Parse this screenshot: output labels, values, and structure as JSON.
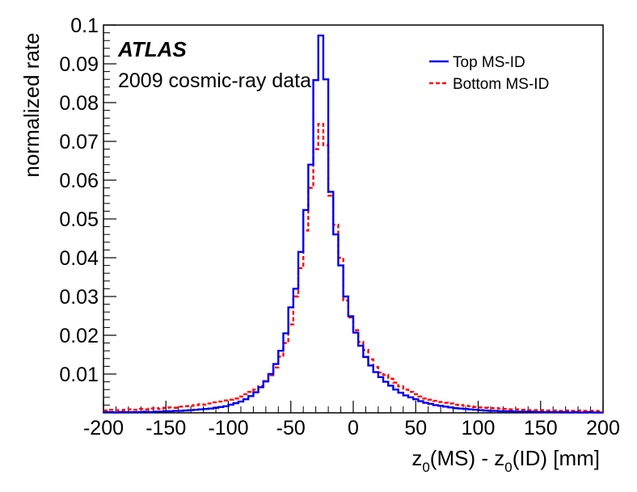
{
  "chart_data": {
    "type": "line",
    "title": "ATLAS",
    "subtitle": "2009 cosmic-ray data",
    "xlabel": {
      "p1": "z",
      "s1": "0",
      "p2": "(MS) - z",
      "s2": "0",
      "p3": "(ID) [mm]"
    },
    "ylabel": "normalized rate",
    "xlim": [
      -200,
      200
    ],
    "ylim": [
      0,
      0.1
    ],
    "xticks": [
      -200,
      -150,
      -100,
      -50,
      0,
      50,
      100,
      150,
      200
    ],
    "xtick_labels": [
      "-200",
      "-150",
      "-100",
      "-50",
      "0",
      "50",
      "100",
      "150",
      "200"
    ],
    "yticks": [
      0.01,
      0.02,
      0.03,
      0.04,
      0.05,
      0.06,
      0.07,
      0.08,
      0.09,
      0.1
    ],
    "ytick_labels": [
      "0.01",
      "0.02",
      "0.03",
      "0.04",
      "0.05",
      "0.06",
      "0.07",
      "0.08",
      "0.09",
      "0.1"
    ],
    "legend_position": "top-right",
    "bin_width": 4,
    "series": [
      {
        "name": "Top MS-ID",
        "color": "#0000ee",
        "style": "solid",
        "values": [
          0.0002,
          0.0002,
          0.0001,
          0.0002,
          0.0002,
          0.0002,
          0.0002,
          0.0002,
          0.0003,
          0.0002,
          0.0003,
          0.0003,
          0.0004,
          0.0004,
          0.0005,
          0.0005,
          0.0006,
          0.0007,
          0.0008,
          0.0009,
          0.001,
          0.0011,
          0.0013,
          0.0015,
          0.0017,
          0.0021,
          0.0025,
          0.0029,
          0.0035,
          0.0043,
          0.0053,
          0.0066,
          0.0081,
          0.01,
          0.0126,
          0.016,
          0.0205,
          0.0272,
          0.032,
          0.0415,
          0.0523,
          0.064,
          0.0858,
          0.0973,
          0.086,
          0.057,
          0.046,
          0.038,
          0.03,
          0.0249,
          0.0207,
          0.0173,
          0.0144,
          0.0122,
          0.0105,
          0.0092,
          0.008,
          0.007,
          0.006,
          0.0052,
          0.0045,
          0.004,
          0.0035,
          0.003,
          0.0026,
          0.0023,
          0.002,
          0.0018,
          0.0016,
          0.0014,
          0.0012,
          0.0011,
          0.001,
          0.0009,
          0.0008,
          0.0007,
          0.0006,
          0.0005,
          0.0005,
          0.0004,
          0.0004,
          0.0004,
          0.0003,
          0.0003,
          0.0003,
          0.0003,
          0.0002,
          0.0002,
          0.0002,
          0.0002,
          0.0002,
          0.0002,
          0.0002,
          0.0001,
          0.0002,
          0.0001,
          0.0001,
          0.0002,
          0.0001,
          0.0001
        ]
      },
      {
        "name": "Bottom MS-ID",
        "color": "#ff0000",
        "style": "dashed",
        "values": [
          0.0006,
          0.0008,
          0.0007,
          0.0007,
          0.0008,
          0.0009,
          0.0008,
          0.001,
          0.0009,
          0.0011,
          0.0012,
          0.001,
          0.0013,
          0.0014,
          0.0013,
          0.0016,
          0.0017,
          0.0018,
          0.002,
          0.0022,
          0.0021,
          0.0024,
          0.0027,
          0.0029,
          0.0032,
          0.0034,
          0.0037,
          0.0042,
          0.0048,
          0.0054,
          0.006,
          0.0069,
          0.0082,
          0.0097,
          0.0117,
          0.0145,
          0.018,
          0.0228,
          0.03,
          0.0373,
          0.047,
          0.058,
          0.068,
          0.0745,
          0.069,
          0.056,
          0.0485,
          0.04,
          0.029,
          0.0246,
          0.0213,
          0.0183,
          0.0162,
          0.0138,
          0.0118,
          0.0104,
          0.0098,
          0.0088,
          0.0078,
          0.0068,
          0.006,
          0.0054,
          0.0048,
          0.0042,
          0.0037,
          0.0034,
          0.0031,
          0.0028,
          0.0026,
          0.0024,
          0.0021,
          0.002,
          0.0018,
          0.0017,
          0.0015,
          0.0014,
          0.0013,
          0.0012,
          0.0012,
          0.0011,
          0.001,
          0.0009,
          0.0009,
          0.0008,
          0.0008,
          0.0007,
          0.0007,
          0.0007,
          0.0006,
          0.0006,
          0.0006,
          0.0005,
          0.0006,
          0.0005,
          0.0005,
          0.0006,
          0.0005,
          0.0005,
          0.0005,
          0.0004
        ]
      }
    ]
  }
}
